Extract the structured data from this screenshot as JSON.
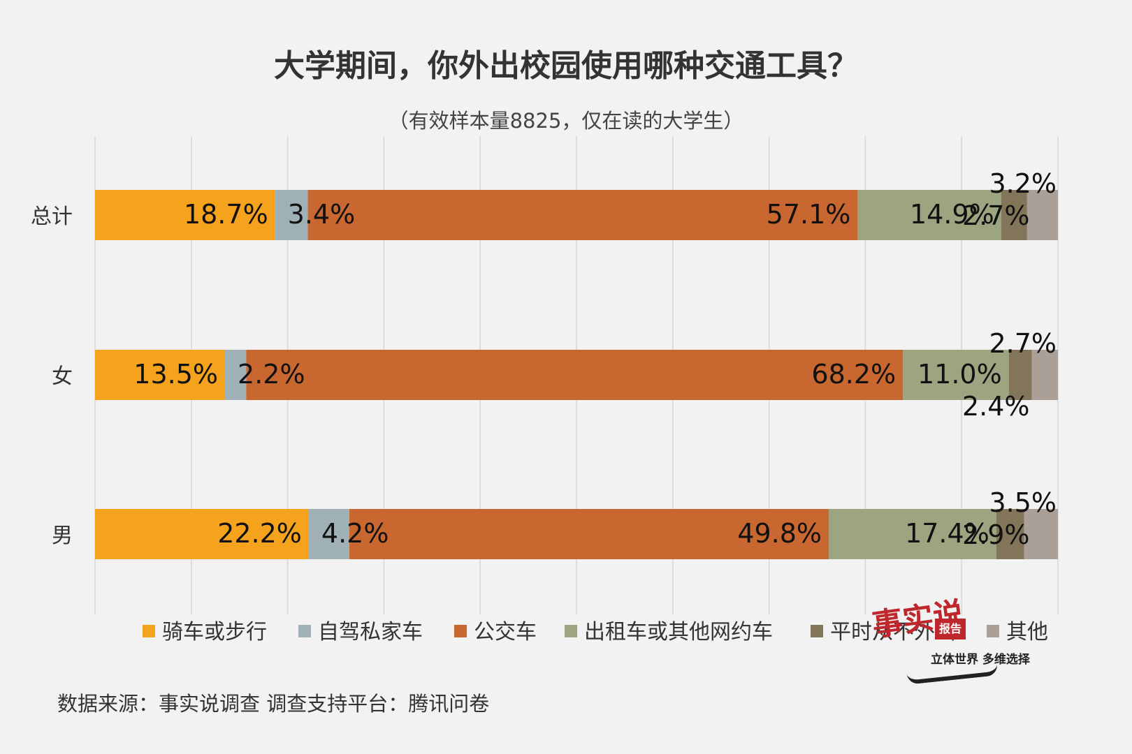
{
  "chart_data": {
    "type": "bar",
    "orientation": "horizontal",
    "stacked": true,
    "title": "大学期间，你外出校园使用哪种交通工具？",
    "subtitle": "（有效样本量8825，仅在读的大学生）",
    "categories": [
      "总计",
      "女",
      "男"
    ],
    "series": [
      {
        "name": "骑车或步行",
        "color": "#f5a21d",
        "values": [
          18.7,
          13.5,
          22.2
        ],
        "labels": [
          "18.7%",
          "13.5%",
          "22.2%"
        ]
      },
      {
        "name": "自驾私家车",
        "color": "#9fb1b6",
        "values": [
          3.4,
          2.2,
          4.2
        ],
        "labels": [
          "3.4%",
          "2.2%",
          "4.2%"
        ]
      },
      {
        "name": "公交车",
        "color": "#c8672f",
        "values": [
          57.1,
          68.2,
          49.8
        ],
        "labels": [
          "57.1%",
          "68.2%",
          "49.8%"
        ]
      },
      {
        "name": "出租车或其他网约车",
        "color": "#9da480",
        "values": [
          14.9,
          11.0,
          17.4
        ],
        "labels": [
          "14.9%",
          "11.0%",
          "17.4%"
        ]
      },
      {
        "name": "平时从不外出",
        "color": "#82755a",
        "values": [
          2.7,
          2.4,
          2.9
        ],
        "labels": [
          "2.7%",
          "2.4%",
          "2.9%"
        ]
      },
      {
        "name": "其他",
        "color": "#aaa097",
        "values": [
          3.2,
          2.7,
          3.5
        ],
        "labels": [
          "3.2%",
          "2.7%",
          "3.5%"
        ]
      }
    ],
    "xlim": [
      0,
      100
    ],
    "grid": true,
    "legend_position": "bottom"
  },
  "footer": {
    "source": "数据来源：事实说调查    调查支持平台：腾讯问卷"
  },
  "watermark": {
    "chars": "事实说",
    "box": "报告",
    "slogan": "立体世界 多维选择"
  }
}
